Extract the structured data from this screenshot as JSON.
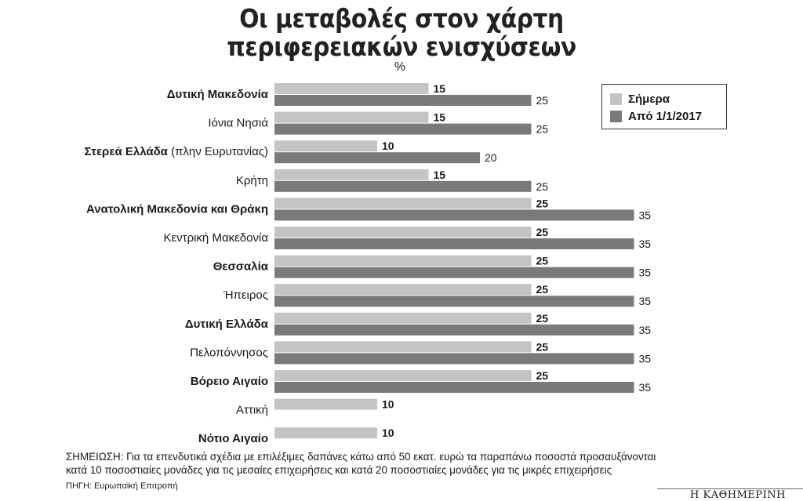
{
  "header": {
    "title_line1": "Οι μεταβολές στον χάρτη",
    "title_line2": "περιφερειακών ενισχύσεων",
    "unit": "%"
  },
  "colors": {
    "today": "#c4c4c4",
    "from2017": "#7a7a7a"
  },
  "legend": {
    "today_label": "Σήμερα",
    "from2017_label": "Από 1/1/2017"
  },
  "chart_data": {
    "type": "bar",
    "orientation": "horizontal",
    "categories": [
      {
        "name": "Δυτική Μακεδονία",
        "bold": true
      },
      {
        "name": "Ιόνια Νησιά",
        "bold": false
      },
      {
        "name": "Στερεά Ελλάδα",
        "suffix": " (πλην Ευρυτανίας)",
        "bold": true
      },
      {
        "name": "Κρήτη",
        "bold": false
      },
      {
        "name": "Ανατολική Μακεδονία και Θράκη",
        "bold": true
      },
      {
        "name": "Κεντρική Μακεδονία",
        "bold": false
      },
      {
        "name": "Θεσσαλία",
        "bold": true
      },
      {
        "name": "Ήπειρος",
        "bold": false
      },
      {
        "name": "Δυτική Ελλάδα",
        "bold": true
      },
      {
        "name": "Πελοπόννησος",
        "bold": false
      },
      {
        "name": "Βόρειο Αιγαίο",
        "bold": true
      },
      {
        "name": "Αττική",
        "bold": false
      },
      {
        "name": "Νότιο Αιγαίο",
        "bold": true
      }
    ],
    "series": [
      {
        "name": "Σήμερα",
        "values": [
          15,
          15,
          10,
          15,
          25,
          25,
          25,
          25,
          25,
          25,
          25,
          10,
          10
        ]
      },
      {
        "name": "Από 1/1/2017",
        "values": [
          25,
          25,
          20,
          25,
          35,
          35,
          35,
          35,
          35,
          35,
          35,
          null,
          null
        ]
      }
    ],
    "xlim": [
      0,
      35
    ],
    "grid": false,
    "legend_position": "top-right"
  },
  "footer": {
    "note_line1": "ΣΗΜΕΙΩΣΗ: Για τα επενδυτικά σχέδια με επιλέξιμες δαπάνες κάτω από 50 εκατ. ευρώ τα παραπάνω ποσοστά προσαυξάνονται",
    "note_line2": "κατά 10 ποσοστιαίες μονάδες για τις μεσαίες επιχειρήσεις και κατά 20 ποσοστιαίες μονάδες για τις μικρές επιχειρήσεις",
    "source": "ΠΗΓΗ: Ευρωπαϊκή Επιτροπή",
    "brand": "Η ΚΑΘΗΜΕΡΙΝΗ"
  }
}
